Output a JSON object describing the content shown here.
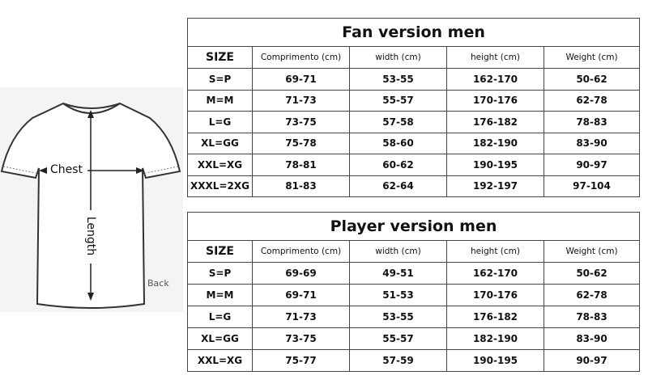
{
  "diagram": {
    "chest_label": "Chest",
    "length_label": "Length",
    "side_label": "Back"
  },
  "fan_table": {
    "title": "Fan version men",
    "headers": [
      "SIZE",
      "Comprimento (cm)",
      "width (cm)",
      "height (cm)",
      "Weight (cm)"
    ],
    "rows": [
      [
        "S=P",
        "69-71",
        "53-55",
        "162-170",
        "50-62"
      ],
      [
        "M=M",
        "71-73",
        "55-57",
        "170-176",
        "62-78"
      ],
      [
        "L=G",
        "73-75",
        "57-58",
        "176-182",
        "78-83"
      ],
      [
        "XL=GG",
        "75-78",
        "58-60",
        "182-190",
        "83-90"
      ],
      [
        "XXL=XG",
        "78-81",
        "60-62",
        "190-195",
        "90-97"
      ],
      [
        "XXXL=2XG",
        "81-83",
        "62-64",
        "192-197",
        "97-104"
      ]
    ]
  },
  "player_table": {
    "title": "Player version men",
    "headers": [
      "SIZE",
      "Comprimento (cm)",
      "width (cm)",
      "height (cm)",
      "Weight (cm)"
    ],
    "rows": [
      [
        "S=P",
        "69-69",
        "49-51",
        "162-170",
        "50-62"
      ],
      [
        "M=M",
        "69-71",
        "51-53",
        "170-176",
        "62-78"
      ],
      [
        "L=G",
        "71-73",
        "53-55",
        "176-182",
        "78-83"
      ],
      [
        "XL=GG",
        "73-75",
        "55-57",
        "182-190",
        "83-90"
      ],
      [
        "XXL=XG",
        "75-77",
        "57-59",
        "190-195",
        "90-97"
      ]
    ]
  }
}
